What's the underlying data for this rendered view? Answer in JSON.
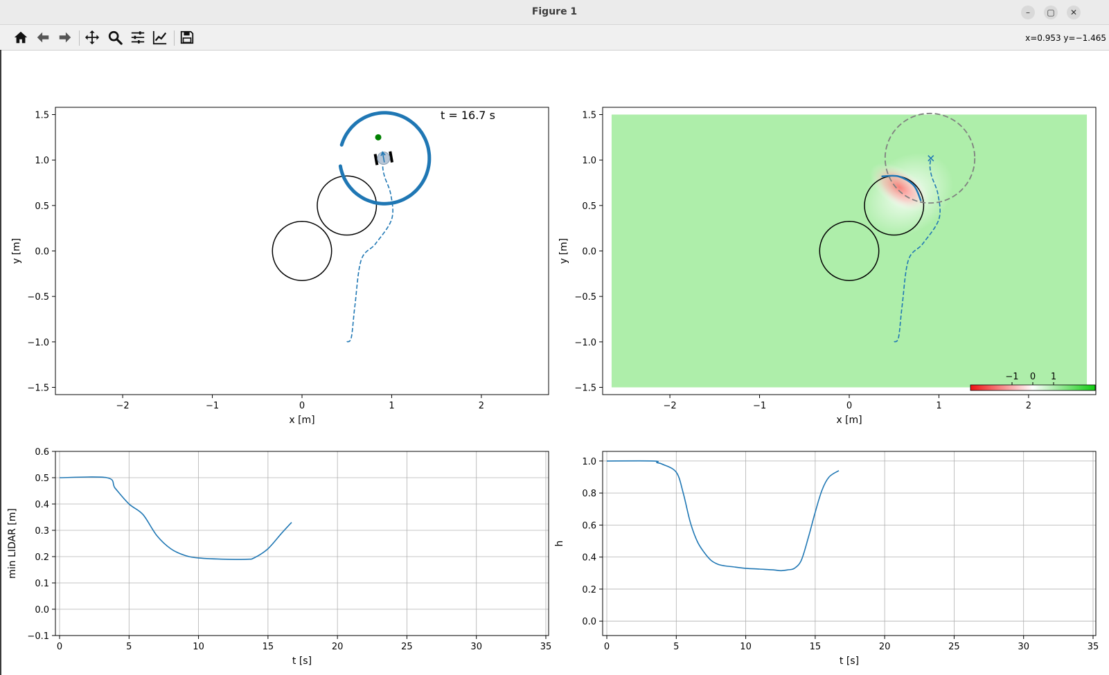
{
  "window": {
    "title": "Figure 1"
  },
  "toolbar": {
    "buttons": [
      "home-icon",
      "back-icon",
      "forward-icon",
      "pan-icon",
      "zoom-icon",
      "configure-subplots-icon",
      "edit-axis-icon",
      "save-icon"
    ],
    "coords": "x=0.953 y=−1.465"
  },
  "colors": {
    "series": "#1f77b4",
    "goal": "#008000",
    "safe": "#aeeeaa",
    "unsafe": "#ff4444"
  },
  "chart_data": [
    {
      "type": "line",
      "id": "trajectory",
      "annotation": "t = 16.7 s",
      "xlabel": "x [m]",
      "ylabel": "y [m]",
      "xlim": [
        -2.75,
        2.75
      ],
      "ylim": [
        -1.58,
        1.58
      ],
      "xticks": [
        -2,
        -1,
        0,
        1,
        2
      ],
      "yticks": [
        -1.5,
        -1.0,
        -0.5,
        0.0,
        0.5,
        1.0,
        1.5
      ],
      "xtick_labels": [
        "−2",
        "−1",
        "0",
        "1",
        "2"
      ],
      "ytick_labels": [
        "−1.5",
        "−1.0",
        "−0.5",
        "0.0",
        "0.5",
        "1.0",
        "1.5"
      ],
      "obstacles": [
        {
          "cx": 0.0,
          "cy": 0.0,
          "r": 0.33
        },
        {
          "cx": 0.5,
          "cy": 0.5,
          "r": 0.33
        }
      ],
      "lidar_ring": {
        "cx": 0.92,
        "cy": 1.02,
        "r": 0.5,
        "start_deg": 190,
        "end_deg": 525
      },
      "goal": {
        "x": 0.85,
        "y": 1.25
      },
      "robot": {
        "x": 0.91,
        "y": 1.02,
        "heading_deg": 90
      },
      "path": [
        [
          0.5,
          -1.0
        ],
        [
          0.55,
          -0.95
        ],
        [
          0.59,
          -0.6
        ],
        [
          0.66,
          -0.1
        ],
        [
          0.82,
          0.08
        ],
        [
          1.0,
          0.35
        ],
        [
          0.99,
          0.62
        ],
        [
          0.92,
          0.82
        ],
        [
          0.9,
          0.93
        ],
        [
          0.91,
          1.02
        ]
      ]
    },
    {
      "type": "heatmap",
      "id": "cbf_map",
      "xlabel": "x [m]",
      "ylabel": "y [m]",
      "xlim": [
        -2.75,
        2.75
      ],
      "ylim": [
        -1.58,
        1.58
      ],
      "xticks": [
        -2,
        -1,
        0,
        1,
        2
      ],
      "yticks": [
        -1.5,
        -1.0,
        -0.5,
        0.0,
        0.5,
        1.0,
        1.5
      ],
      "xtick_labels": [
        "−2",
        "−1",
        "0",
        "1",
        "2"
      ],
      "ytick_labels": [
        "−1.5",
        "−1.0",
        "−0.5",
        "0.0",
        "0.5",
        "1.0",
        "1.5"
      ],
      "extent": {
        "x": [
          -2.65,
          2.65
        ],
        "y": [
          -1.5,
          1.5
        ]
      },
      "obstacles": [
        {
          "cx": 0.0,
          "cy": 0.0,
          "r": 0.33
        },
        {
          "cx": 0.5,
          "cy": 0.5,
          "r": 0.33
        }
      ],
      "sensor_range": {
        "cx": 0.9,
        "cy": 1.02,
        "r": 0.5
      },
      "robot_marker": {
        "x": 0.91,
        "y": 1.02
      },
      "path": [
        [
          0.5,
          -1.0
        ],
        [
          0.55,
          -0.95
        ],
        [
          0.59,
          -0.6
        ],
        [
          0.66,
          -0.1
        ],
        [
          0.82,
          0.08
        ],
        [
          1.0,
          0.35
        ],
        [
          0.99,
          0.62
        ],
        [
          0.92,
          0.82
        ],
        [
          0.9,
          0.93
        ],
        [
          0.91,
          1.02
        ]
      ],
      "boundary": [
        [
          0.36,
          0.82
        ],
        [
          0.55,
          0.82
        ],
        [
          0.72,
          0.72
        ],
        [
          0.8,
          0.55
        ]
      ],
      "colorbar": {
        "range": [
          -3,
          3
        ],
        "ticks": [
          -1,
          0,
          1
        ],
        "tick_labels": [
          "−1",
          "0",
          "1"
        ]
      }
    },
    {
      "type": "line",
      "id": "min_lidar",
      "xlabel": "t [s]",
      "ylabel": "min LIDAR [m]",
      "xlim": [
        -0.3,
        35.2
      ],
      "ylim": [
        -0.1,
        0.6
      ],
      "xticks": [
        0,
        5,
        10,
        15,
        20,
        25,
        30,
        35
      ],
      "yticks": [
        -0.1,
        0.0,
        0.1,
        0.2,
        0.3,
        0.4,
        0.5,
        0.6
      ],
      "xtick_labels": [
        "0",
        "5",
        "10",
        "15",
        "20",
        "25",
        "30",
        "35"
      ],
      "ytick_labels": [
        "−0.1",
        "0.0",
        "0.1",
        "0.2",
        "0.3",
        "0.4",
        "0.5",
        "0.6"
      ],
      "grid": true,
      "x": [
        0,
        3.4,
        4.0,
        5.0,
        6.0,
        7.0,
        8.0,
        9.0,
        10.0,
        12.0,
        13.5,
        14.0,
        15.0,
        16.0,
        16.7
      ],
      "y": [
        0.5,
        0.5,
        0.46,
        0.4,
        0.36,
        0.28,
        0.23,
        0.205,
        0.195,
        0.19,
        0.19,
        0.195,
        0.23,
        0.29,
        0.33
      ]
    },
    {
      "type": "line",
      "id": "h_value",
      "xlabel": "t [s]",
      "ylabel": "h",
      "xlim": [
        -0.3,
        35.2
      ],
      "ylim": [
        -0.09,
        1.06
      ],
      "xticks": [
        0,
        5,
        10,
        15,
        20,
        25,
        30,
        35
      ],
      "yticks": [
        0.0,
        0.2,
        0.4,
        0.6,
        0.8,
        1.0
      ],
      "xtick_labels": [
        "0",
        "5",
        "10",
        "15",
        "20",
        "25",
        "30",
        "35"
      ],
      "ytick_labels": [
        "0.0",
        "0.2",
        "0.4",
        "0.6",
        "0.8",
        "1.0"
      ],
      "grid": true,
      "x": [
        0,
        3.4,
        3.6,
        4.0,
        5.0,
        5.5,
        6.0,
        6.5,
        7.0,
        7.5,
        8.0,
        8.5,
        9.0,
        10.0,
        11.0,
        12.0,
        12.5,
        13.0,
        13.5,
        14.0,
        14.5,
        15.0,
        15.5,
        16.0,
        16.7
      ],
      "y": [
        1.0,
        1.0,
        0.99,
        0.98,
        0.93,
        0.8,
        0.62,
        0.5,
        0.43,
        0.38,
        0.355,
        0.345,
        0.34,
        0.33,
        0.325,
        0.32,
        0.315,
        0.32,
        0.33,
        0.38,
        0.52,
        0.68,
        0.82,
        0.9,
        0.94
      ]
    }
  ]
}
